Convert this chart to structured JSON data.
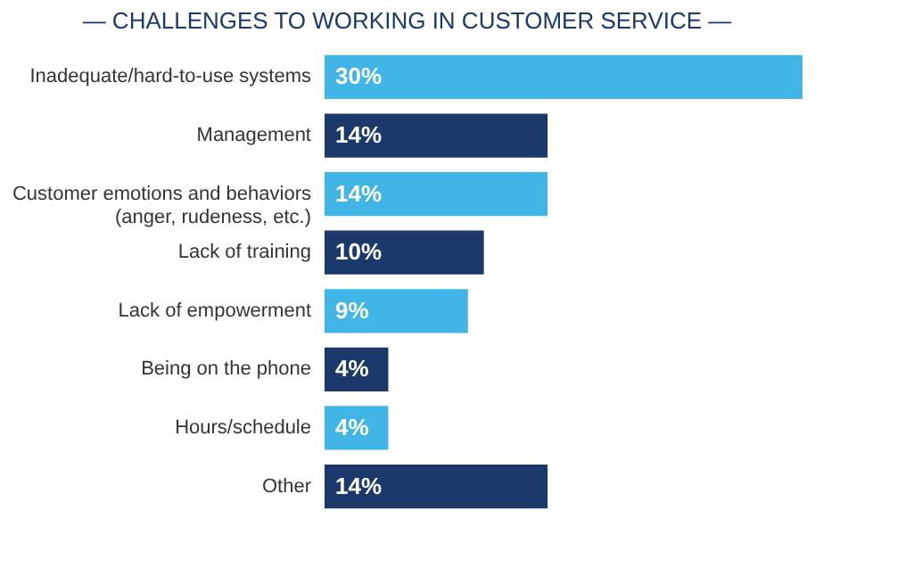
{
  "chart_data": {
    "type": "bar",
    "orientation": "horizontal",
    "title": "— CHALLENGES TO WORKING IN CUSTOMER SERVICE —",
    "categories": [
      "Inadequate/hard-to-use systems",
      "Management",
      "Customer emotions and behaviors\n(anger, rudeness, etc.)",
      "Lack of training",
      "Lack of empowerment",
      "Being on the phone",
      "Hours/schedule",
      "Other"
    ],
    "values": [
      30,
      14,
      14,
      10,
      9,
      4,
      4,
      14
    ],
    "value_labels": [
      "30%",
      "14%",
      "14%",
      "10%",
      "9%",
      "4%",
      "4%",
      "14%"
    ],
    "colors": [
      "#41b6e6",
      "#1b3a6b",
      "#41b6e6",
      "#1b3a6b",
      "#41b6e6",
      "#1b3a6b",
      "#41b6e6",
      "#1b3a6b"
    ],
    "grid": false
  }
}
